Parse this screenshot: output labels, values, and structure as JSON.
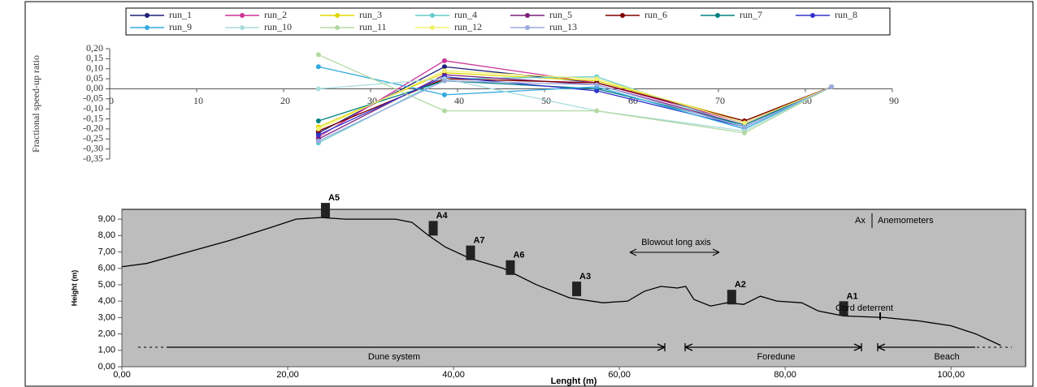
{
  "chart_data": [
    {
      "type": "line",
      "ylabel": "Fractional speed-up ratio",
      "x": [
        24,
        38.5,
        56,
        73,
        83
      ],
      "xlim": [
        0,
        90
      ],
      "xticks": [
        0,
        10,
        20,
        30,
        40,
        50,
        60,
        70,
        80,
        90
      ],
      "ylim": [
        -0.35,
        0.2
      ],
      "yticks": [
        {
          "value": 0.2,
          "label": "0,20"
        },
        {
          "value": 0.15,
          "label": "0,15"
        },
        {
          "value": 0.1,
          "label": "0,10"
        },
        {
          "value": 0.05,
          "label": "0,05"
        },
        {
          "value": 0,
          "label": "0,00"
        },
        {
          "value": -0.05,
          "label": "-0,05"
        },
        {
          "value": -0.1,
          "label": "-0,10"
        },
        {
          "value": -0.15,
          "label": "-0,15"
        },
        {
          "value": -0.2,
          "label": "-0,20"
        },
        {
          "value": -0.25,
          "label": "-0,25"
        },
        {
          "value": -0.3,
          "label": "-0,30"
        },
        {
          "value": -0.35,
          "label": "-0,35"
        }
      ],
      "legend": "top",
      "series": [
        {
          "name": "run_1",
          "color": "#1f1f7a",
          "values": [
            -0.22,
            0.11,
            0.03,
            -0.17,
            0.01
          ]
        },
        {
          "name": "run_2",
          "color": "#cc3399",
          "values": [
            -0.24,
            0.14,
            0.03,
            -0.17,
            0.01
          ]
        },
        {
          "name": "run_3",
          "color": "#e0d800",
          "values": [
            -0.19,
            0.08,
            0.04,
            -0.16,
            0.01
          ]
        },
        {
          "name": "run_4",
          "color": "#66cccc",
          "values": [
            -0.27,
            0.05,
            0.06,
            -0.19,
            0.01
          ]
        },
        {
          "name": "run_5",
          "color": "#7a1f7a",
          "values": [
            -0.25,
            0.07,
            0.02,
            -0.18,
            0.01
          ]
        },
        {
          "name": "run_6",
          "color": "#800000",
          "values": [
            -0.21,
            0.05,
            0.03,
            -0.16,
            0.01
          ]
        },
        {
          "name": "run_7",
          "color": "#008080",
          "values": [
            -0.16,
            0.04,
            0.0,
            -0.18,
            0.01
          ]
        },
        {
          "name": "run_8",
          "color": "#3333cc",
          "values": [
            -0.23,
            0.06,
            -0.01,
            -0.19,
            0.01
          ]
        },
        {
          "name": "run_9",
          "color": "#33aadd",
          "values": [
            0.11,
            -0.03,
            0.01,
            -0.2,
            0.01
          ]
        },
        {
          "name": "run_10",
          "color": "#aadddd",
          "values": [
            0.0,
            0.05,
            -0.11,
            -0.21,
            0.01
          ]
        },
        {
          "name": "run_11",
          "color": "#b3d9a3",
          "values": [
            0.17,
            -0.11,
            -0.11,
            -0.22,
            0.01
          ]
        },
        {
          "name": "run_12",
          "color": "#f0f070",
          "values": [
            -0.2,
            0.09,
            0.05,
            -0.17,
            0.01
          ]
        },
        {
          "name": "run_13",
          "color": "#99aadd",
          "values": [
            -0.26,
            0.04,
            0.02,
            -0.19,
            0.01
          ]
        }
      ]
    },
    {
      "type": "line",
      "xlabel": "Lenght (m)",
      "ylabel": "Height (m)",
      "x": [
        0,
        3,
        8,
        13,
        18,
        21,
        24,
        27,
        33,
        35,
        37,
        39,
        42,
        46,
        50,
        54,
        58,
        61,
        63,
        65,
        67,
        68,
        69,
        71,
        73,
        75,
        77,
        79,
        82,
        84,
        87,
        92,
        96,
        100,
        103,
        106
      ],
      "values": [
        6.1,
        6.3,
        7.0,
        7.7,
        8.5,
        9.0,
        9.1,
        9.0,
        9.0,
        8.8,
        8.0,
        7.3,
        6.6,
        6.0,
        5.0,
        4.2,
        3.9,
        4.0,
        4.6,
        4.9,
        4.8,
        4.9,
        4.1,
        3.7,
        3.9,
        3.8,
        4.3,
        4.0,
        3.9,
        3.4,
        3.1,
        3.0,
        2.8,
        2.5,
        2.0,
        1.3
      ],
      "color": "#000000",
      "background": "#bdbdbd",
      "xlim": [
        0,
        109
      ],
      "xticks": [
        {
          "value": 0,
          "label": "0,00"
        },
        {
          "value": 20,
          "label": "20,00"
        },
        {
          "value": 40,
          "label": "40,00"
        },
        {
          "value": 60,
          "label": "60,00"
        },
        {
          "value": 80,
          "label": "80,00"
        },
        {
          "value": 100,
          "label": "100,00"
        }
      ],
      "ylim": [
        0,
        9.6
      ],
      "yticks": [
        {
          "value": 0,
          "label": "0,00"
        },
        {
          "value": 1,
          "label": "1,00"
        },
        {
          "value": 2,
          "label": "2,00"
        },
        {
          "value": 3,
          "label": "3,00"
        },
        {
          "value": 4,
          "label": "4,00"
        },
        {
          "value": 5,
          "label": "5,00"
        },
        {
          "value": 6,
          "label": "6,00"
        },
        {
          "value": 7,
          "label": "7,00"
        },
        {
          "value": 8,
          "label": "8,00"
        },
        {
          "value": 9,
          "label": "9,00"
        }
      ],
      "anemometers": [
        {
          "label": "A5",
          "x": 24.5,
          "height": 9.1
        },
        {
          "label": "A4",
          "x": 37.5,
          "height": 8.0
        },
        {
          "label": "A7",
          "x": 42,
          "height": 6.5
        },
        {
          "label": "A6",
          "x": 46.8,
          "height": 5.6
        },
        {
          "label": "A3",
          "x": 54.8,
          "height": 4.3
        },
        {
          "label": "A2",
          "x": 73.5,
          "height": 3.8
        },
        {
          "label": "A1",
          "x": 87,
          "height": 3.1
        }
      ],
      "legend_symbol": "Ax",
      "legend_text": "Anemometers",
      "annotations": [
        "Blowout long axis",
        "Cord deterrent"
      ],
      "zones": [
        "Dune system",
        "Foredune",
        "Beach"
      ]
    }
  ]
}
